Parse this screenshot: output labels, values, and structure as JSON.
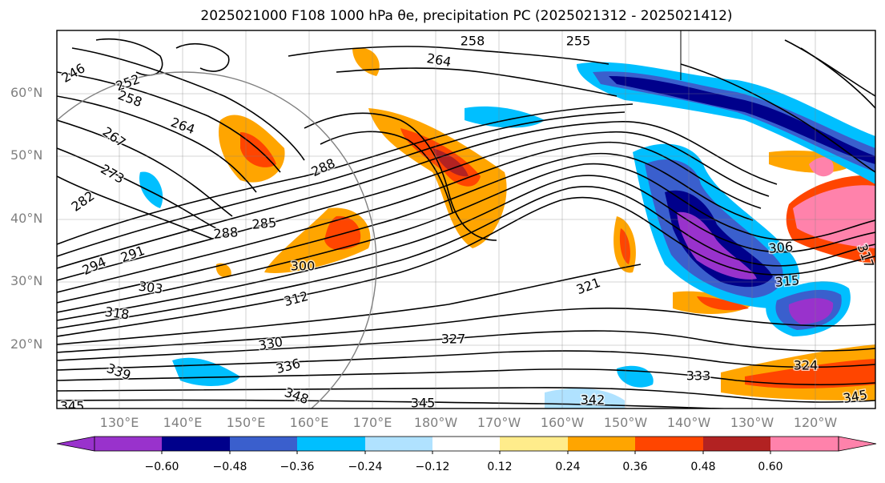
{
  "title": "2025021000 F108 1000 hPa θe, precipitation PC (2025021312 - 2025021412)",
  "map": {
    "lat_labels": [
      "60°N",
      "50°N",
      "40°N",
      "30°N",
      "20°N"
    ],
    "lon_labels": [
      "130°E",
      "140°E",
      "150°E",
      "160°E",
      "170°E",
      "180°W",
      "170°W",
      "160°W",
      "150°W",
      "140°W",
      "130°W",
      "120°W"
    ],
    "contour_labels": [
      "258",
      "255",
      "264",
      "246",
      "252",
      "258",
      "264",
      "267",
      "273",
      "282",
      "288",
      "285",
      "288",
      "291",
      "294",
      "300",
      "303",
      "306",
      "312",
      "315",
      "318",
      "321",
      "327",
      "330",
      "333",
      "336",
      "339",
      "342",
      "345",
      "345",
      "345",
      "348",
      "324",
      "317"
    ]
  },
  "colorbar": {
    "ticks": [
      "−0.60",
      "−0.48",
      "−0.36",
      "−0.24",
      "−0.12",
      "0.12",
      "0.24",
      "0.36",
      "0.48",
      "0.60"
    ],
    "colors": [
      "#9932cc",
      "#00008b",
      "#3a5fcd",
      "#00bfff",
      "#b0e2ff",
      "#ffffff",
      "#ffec8b",
      "#ffa500",
      "#ff4500",
      "#b22222",
      "#ff82ab"
    ]
  }
}
